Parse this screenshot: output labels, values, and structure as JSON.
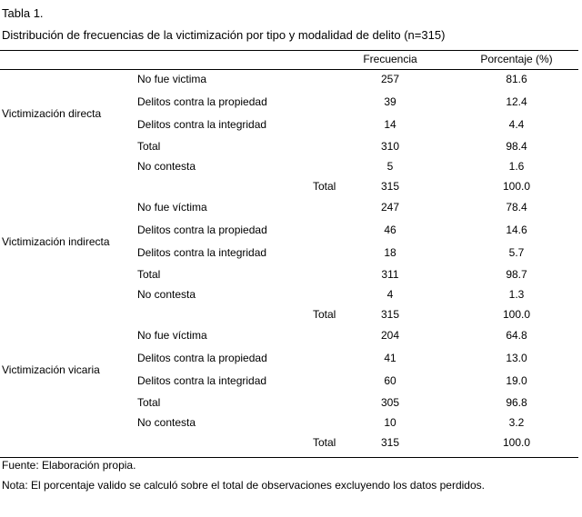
{
  "caption": {
    "label": "Tabla 1.",
    "title": "Distribución de frecuencias de la victimización por tipo y modalidad de delito (n=315)"
  },
  "table": {
    "headers": {
      "frequency": "Frecuencia",
      "percentage": "Porcentaje (%)"
    },
    "groups": [
      {
        "label": "Victimización directa",
        "rows": [
          {
            "label": "No fue victima",
            "freq": "257",
            "pct": "81.6"
          },
          {
            "label": "Delitos contra la propiedad",
            "freq": "39",
            "pct": "12.4"
          },
          {
            "label": "Delitos contra la integridad",
            "freq": "14",
            "pct": "4.4"
          },
          {
            "label": "Total",
            "freq": "310",
            "pct": "98.4"
          },
          {
            "label": "No contesta",
            "freq": "5",
            "pct": "1.6"
          }
        ],
        "total": {
          "label": "Total",
          "freq": "315",
          "pct": "100.0"
        }
      },
      {
        "label": "Victimización indirecta",
        "rows": [
          {
            "label": "No fue víctima",
            "freq": "247",
            "pct": "78.4"
          },
          {
            "label": "Delitos contra la propiedad",
            "freq": "46",
            "pct": "14.6"
          },
          {
            "label": "Delitos contra la integridad",
            "freq": "18",
            "pct": "5.7"
          },
          {
            "label": "Total",
            "freq": "311",
            "pct": "98.7"
          },
          {
            "label": "No contesta",
            "freq": "4",
            "pct": "1.3"
          }
        ],
        "total": {
          "label": "Total",
          "freq": "315",
          "pct": "100.0"
        }
      },
      {
        "label": "Victimización vicaria",
        "rows": [
          {
            "label": "No fue víctima",
            "freq": "204",
            "pct": "64.8"
          },
          {
            "label": "Delitos contra la propiedad",
            "freq": "41",
            "pct": "13.0"
          },
          {
            "label": "Delitos contra la integridad",
            "freq": "60",
            "pct": "19.0"
          },
          {
            "label": "Total",
            "freq": "305",
            "pct": "96.8"
          },
          {
            "label": "No contesta",
            "freq": "10",
            "pct": "3.2"
          }
        ],
        "total": {
          "label": "Total",
          "freq": "315",
          "pct": "100.0"
        }
      }
    ]
  },
  "footer": {
    "source": "Fuente: Elaboración propia.",
    "note": "Nota: El porcentaje valido se calculó sobre el total de observaciones excluyendo los datos perdidos."
  }
}
